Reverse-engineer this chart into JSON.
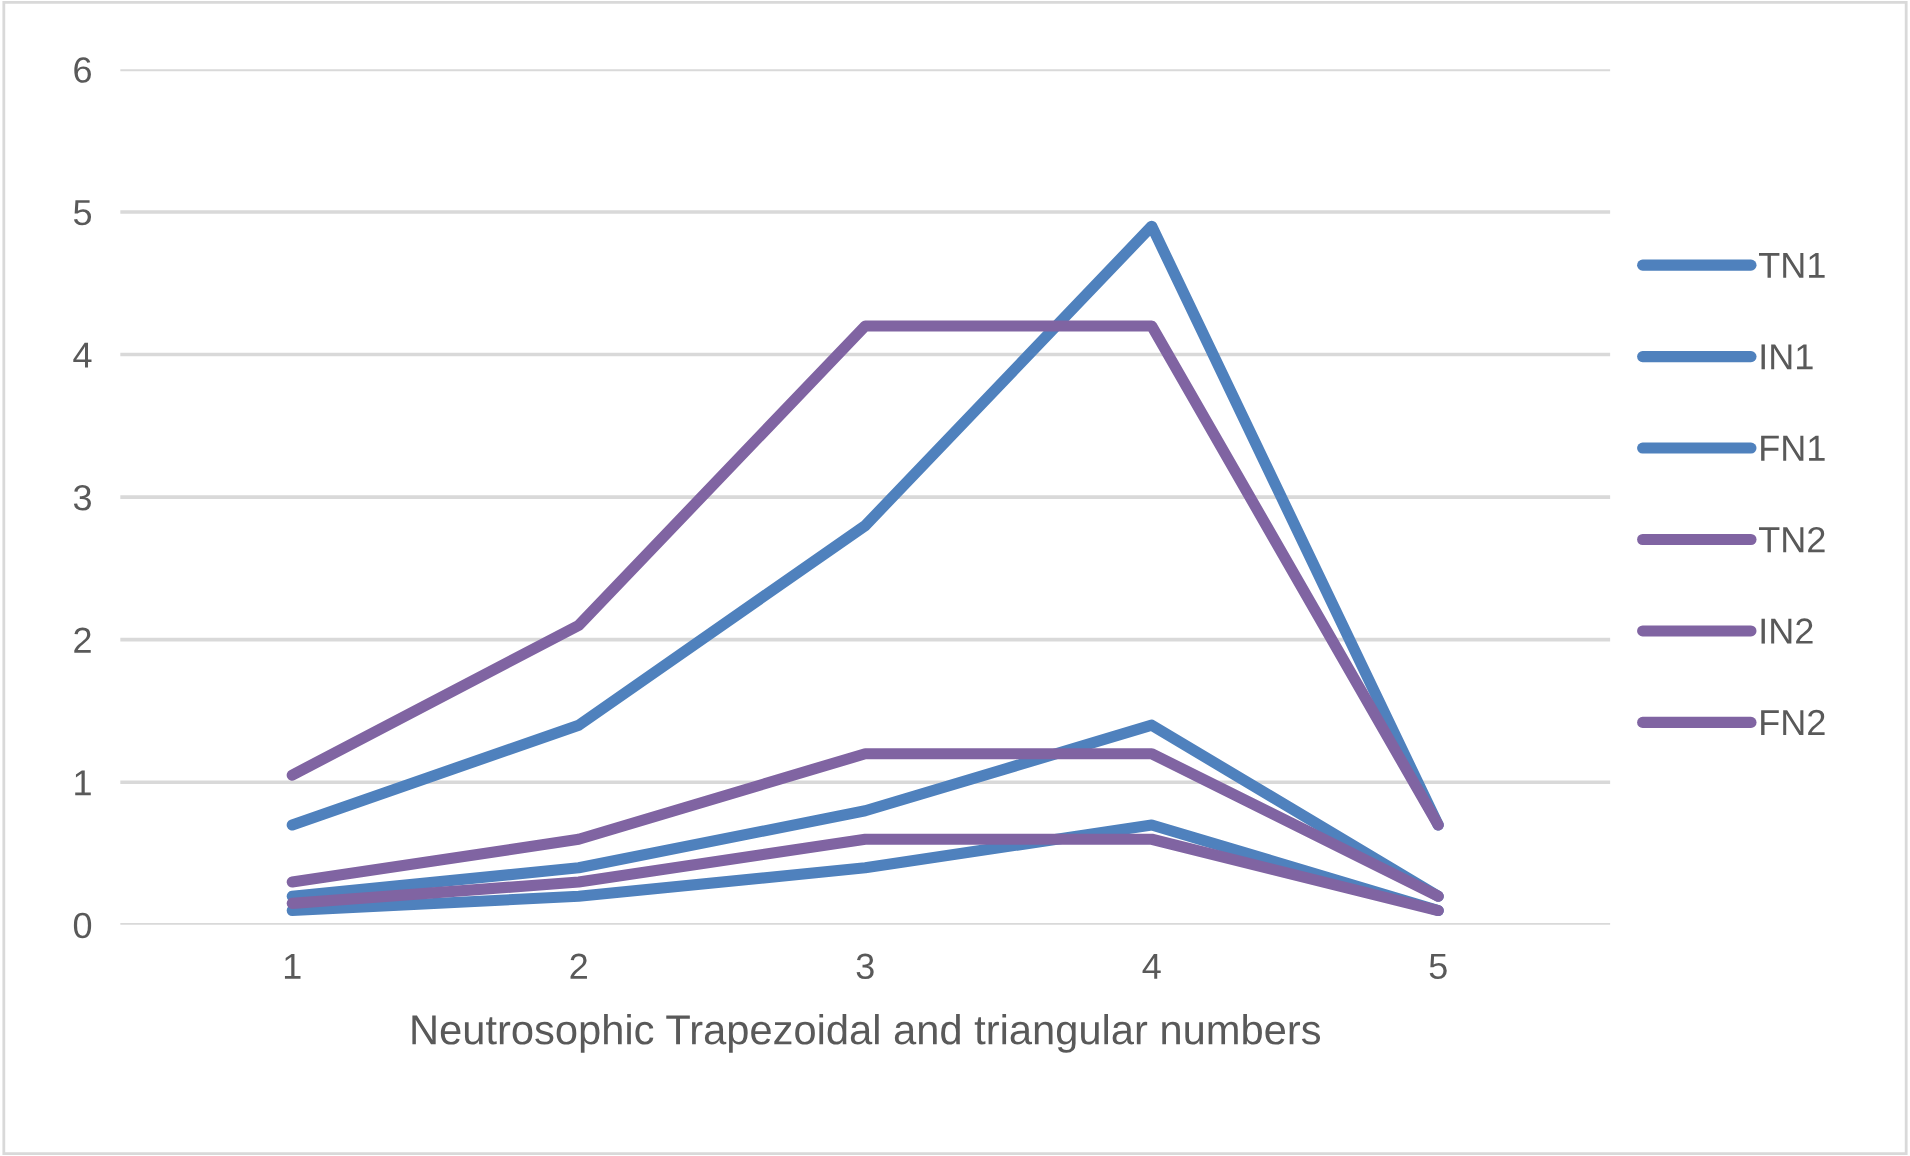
{
  "chart_data": {
    "type": "line",
    "xlabel": "Neutrosophic Trapezoidal and triangular numbers",
    "categories": [
      "1",
      "2",
      "3",
      "4",
      "5"
    ],
    "series": [
      {
        "name": "TN1",
        "color": "#4f81bd",
        "values": [
          0.1,
          0.2,
          0.4,
          0.7,
          0.1
        ]
      },
      {
        "name": "IN1",
        "color": "#4f81bd",
        "values": [
          0.2,
          0.4,
          0.8,
          1.4,
          0.2
        ]
      },
      {
        "name": "FN1",
        "color": "#4f81bd",
        "values": [
          0.7,
          1.4,
          2.8,
          4.9,
          0.7
        ]
      },
      {
        "name": "TN2",
        "color": "#8064a2",
        "values": [
          0.15,
          0.3,
          0.6,
          0.6,
          0.1
        ]
      },
      {
        "name": "IN2",
        "color": "#8064a2",
        "values": [
          0.3,
          0.6,
          1.2,
          1.2,
          0.2
        ]
      },
      {
        "name": "FN2",
        "color": "#8064a2",
        "values": [
          1.05,
          2.1,
          4.2,
          4.2,
          0.7
        ]
      }
    ],
    "ylim": [
      0,
      6
    ],
    "yticks": [
      0,
      1,
      2,
      3,
      4,
      5,
      6
    ],
    "grid": "y",
    "legend": "right",
    "marker": "none",
    "line_style": "solid"
  }
}
